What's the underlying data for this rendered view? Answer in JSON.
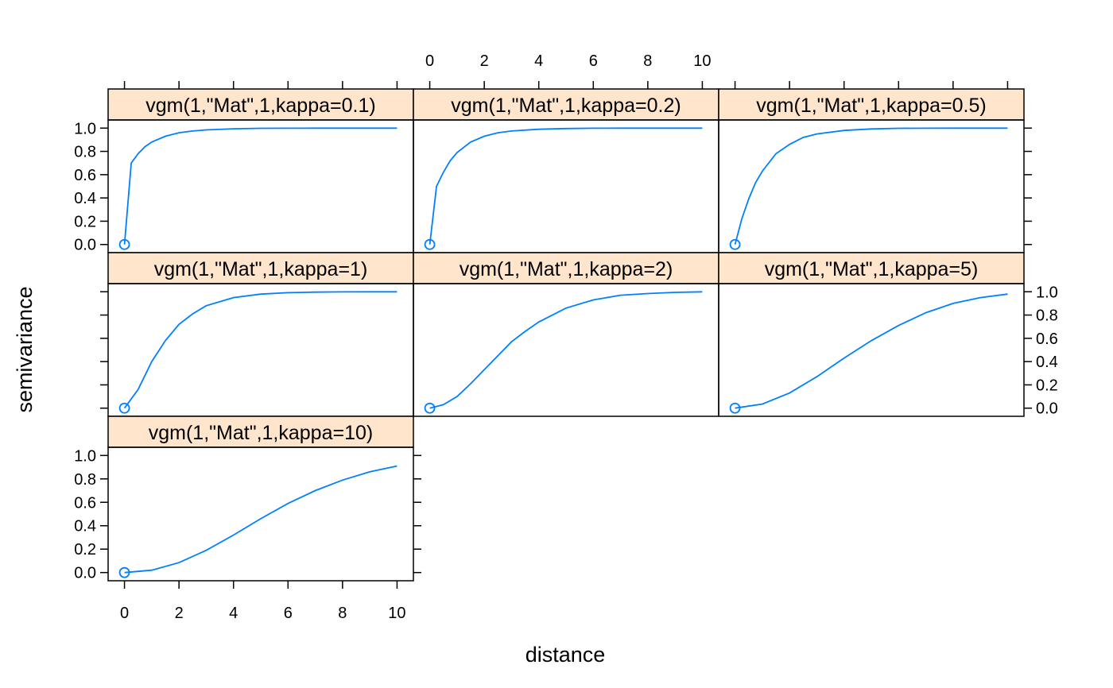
{
  "chart_data": {
    "type": "line",
    "xlabel": "distance",
    "ylabel": "semivariance",
    "xlim": [
      -0.6,
      10.6
    ],
    "ylim": [
      -0.07,
      1.07
    ],
    "x_ticks": [
      "0",
      "2",
      "4",
      "6",
      "8",
      "10"
    ],
    "y_ticks": [
      "0.0",
      "0.2",
      "0.4",
      "0.6",
      "0.8",
      "1.0"
    ],
    "grid": false,
    "colors": {
      "line": "#0080ff",
      "strip": "#ffe5cc",
      "frame": "#000000"
    },
    "panels": [
      {
        "label": "vgm(1,\"Mat\",1,kappa=0.1)",
        "kappa": 0.1,
        "x": [
          0,
          0.25,
          0.5,
          0.75,
          1,
          1.5,
          2,
          2.5,
          3,
          4,
          5,
          6,
          7,
          8,
          9,
          10
        ],
        "y": [
          0,
          0.7,
          0.78,
          0.84,
          0.88,
          0.93,
          0.96,
          0.975,
          0.985,
          0.994,
          0.998,
          0.999,
          1.0,
          1.0,
          1.0,
          1.0
        ]
      },
      {
        "label": "vgm(1,\"Mat\",1,kappa=0.2)",
        "kappa": 0.2,
        "x": [
          0,
          0.25,
          0.5,
          0.75,
          1,
          1.5,
          2,
          2.5,
          3,
          4,
          5,
          6,
          7,
          8,
          9,
          10
        ],
        "y": [
          0,
          0.5,
          0.62,
          0.72,
          0.79,
          0.88,
          0.93,
          0.96,
          0.975,
          0.99,
          0.996,
          0.999,
          1.0,
          1.0,
          1.0,
          1.0
        ]
      },
      {
        "label": "vgm(1,\"Mat\",1,kappa=0.5)",
        "kappa": 0.5,
        "x": [
          0,
          0.25,
          0.5,
          0.75,
          1,
          1.5,
          2,
          2.5,
          3,
          4,
          5,
          6,
          7,
          8,
          9,
          10
        ],
        "y": [
          0,
          0.22,
          0.39,
          0.53,
          0.63,
          0.78,
          0.86,
          0.92,
          0.95,
          0.98,
          0.993,
          0.998,
          0.999,
          1.0,
          1.0,
          1.0
        ]
      },
      {
        "label": "vgm(1,\"Mat\",1,kappa=1)",
        "kappa": 1,
        "x": [
          0,
          0.5,
          1,
          1.5,
          2,
          2.5,
          3,
          4,
          5,
          6,
          7,
          8,
          9,
          10
        ],
        "y": [
          0,
          0.16,
          0.4,
          0.58,
          0.72,
          0.81,
          0.88,
          0.95,
          0.98,
          0.992,
          0.997,
          0.999,
          1.0,
          1.0
        ]
      },
      {
        "label": "vgm(1,\"Mat\",1,kappa=2)",
        "kappa": 2,
        "x": [
          0,
          0.5,
          1,
          1.5,
          2,
          2.5,
          3,
          3.5,
          4,
          5,
          6,
          7,
          8,
          9,
          10
        ],
        "y": [
          0,
          0.03,
          0.1,
          0.21,
          0.33,
          0.45,
          0.57,
          0.66,
          0.74,
          0.86,
          0.93,
          0.97,
          0.985,
          0.995,
          1.0
        ]
      },
      {
        "label": "vgm(1,\"Mat\",1,kappa=5)",
        "kappa": 5,
        "x": [
          0,
          1,
          2,
          3,
          4,
          5,
          6,
          7,
          8,
          9,
          10
        ],
        "y": [
          0,
          0.035,
          0.13,
          0.27,
          0.43,
          0.58,
          0.71,
          0.82,
          0.9,
          0.95,
          0.98
        ]
      },
      {
        "label": "vgm(1,\"Mat\",1,kappa=10)",
        "kappa": 10,
        "x": [
          0,
          1,
          2,
          3,
          4,
          5,
          6,
          7,
          8,
          9,
          10
        ],
        "y": [
          0,
          0.02,
          0.085,
          0.19,
          0.32,
          0.46,
          0.59,
          0.7,
          0.79,
          0.86,
          0.91
        ]
      }
    ]
  }
}
